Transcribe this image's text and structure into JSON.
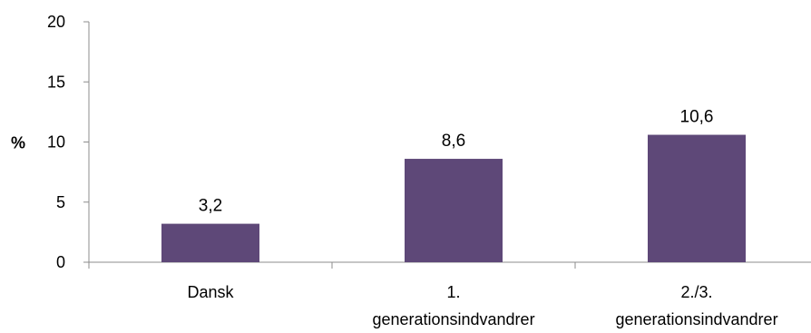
{
  "chart_data": {
    "type": "bar",
    "categories": [
      "Dansk",
      "1. generationsindvandrer",
      "2./3. generationsindvandrer"
    ],
    "category_lines": [
      [
        "Dansk"
      ],
      [
        "1.",
        "generationsindvandrer"
      ],
      [
        "2./3.",
        "generationsindvandrer"
      ]
    ],
    "values": [
      3.2,
      8.6,
      10.6
    ],
    "data_labels": [
      "3,2",
      "8,6",
      "10,6"
    ],
    "ylabel": "%",
    "ylim": [
      0,
      20
    ],
    "yticks": [
      0,
      5,
      10,
      15,
      20
    ],
    "bar_color": "#5e4878",
    "axis_color": "#8c8c8c",
    "grid": false,
    "legend": "none"
  }
}
